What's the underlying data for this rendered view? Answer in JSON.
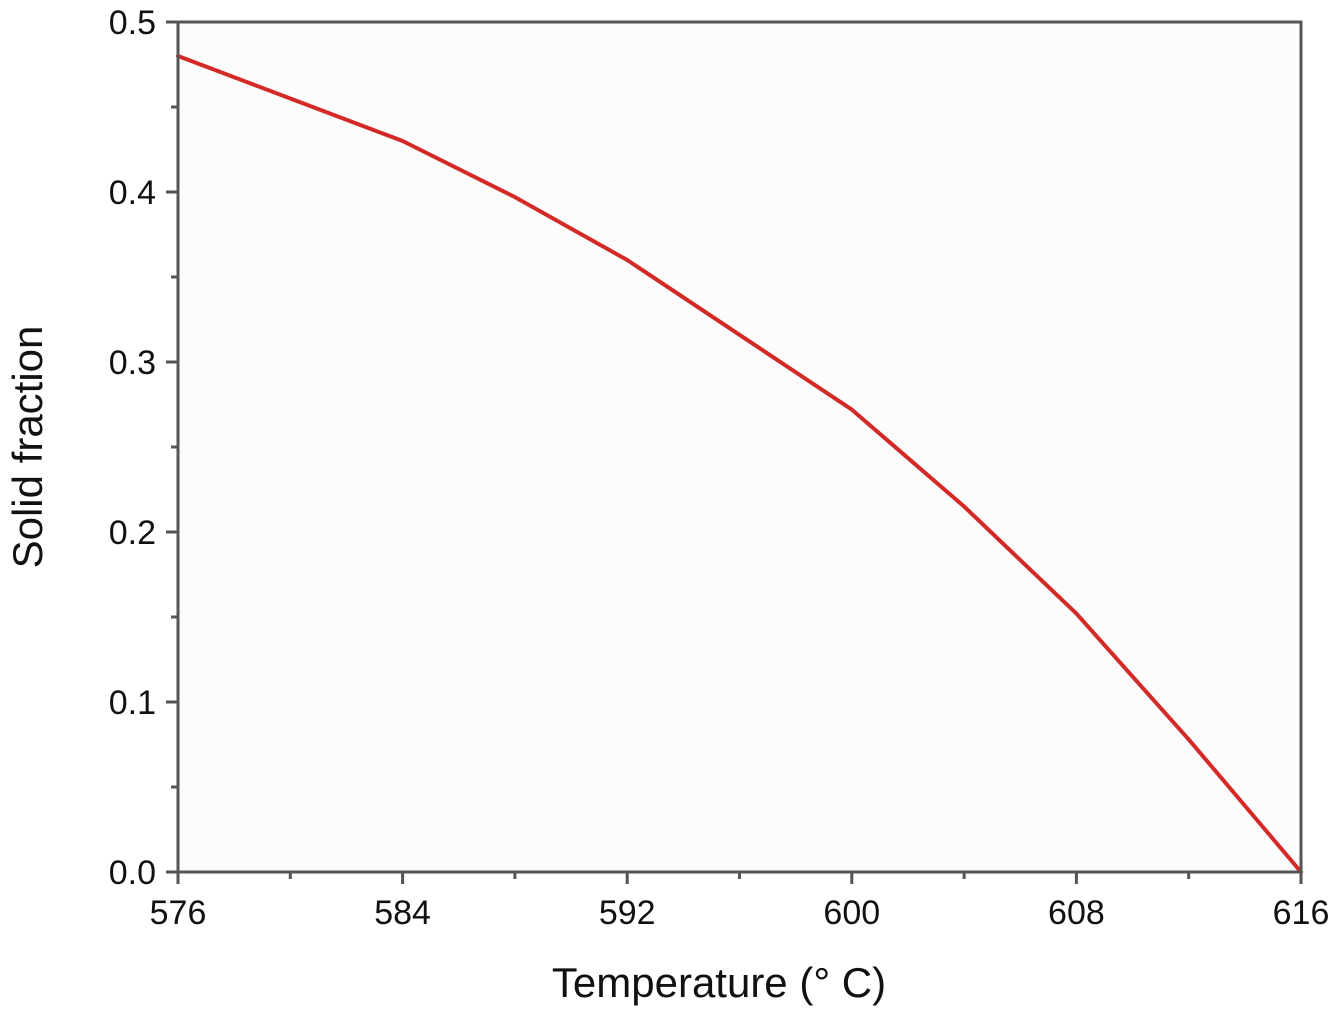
{
  "chart_data": {
    "type": "line",
    "title": "",
    "xlabel": "Temperature (° C)",
    "ylabel": "Solid fraction",
    "xlim": [
      576,
      616
    ],
    "ylim": [
      0.0,
      0.5
    ],
    "x_ticks": [
      "576",
      "584",
      "592",
      "600",
      "608",
      "616"
    ],
    "y_ticks": [
      "0.0",
      "0.1",
      "0.2",
      "0.3",
      "0.4",
      "0.5"
    ],
    "grid": false,
    "legend": "none",
    "series": [
      {
        "color": "#d42a27",
        "x": [
          576,
          580,
          584,
          588,
          592,
          596,
          600,
          604,
          608,
          612,
          616
        ],
        "y": [
          0.48,
          0.455,
          0.43,
          0.397,
          0.36,
          0.316,
          0.272,
          0.215,
          0.152,
          0.078,
          0.0
        ]
      }
    ]
  }
}
